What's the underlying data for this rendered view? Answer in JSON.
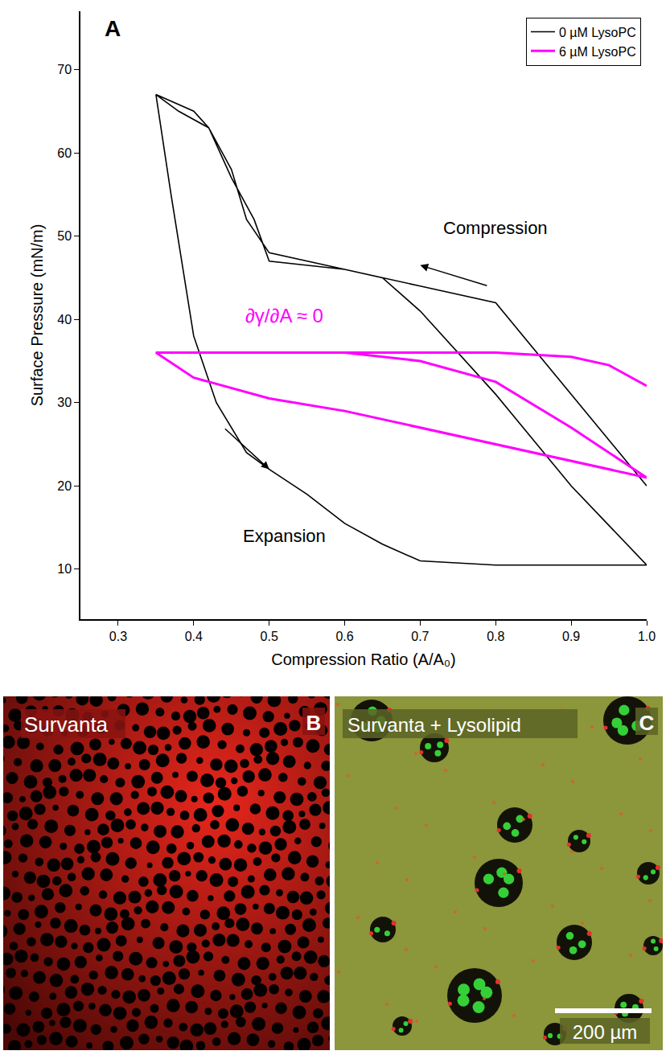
{
  "chart_data": {
    "type": "line",
    "panel_letter": "A",
    "x_label": "Compression Ratio (A/A₀)",
    "y_label": "Surface Pressure (mN/m)",
    "xlim": [
      0.25,
      1.0
    ],
    "ylim": [
      4,
      77
    ],
    "xticks": [
      0.3,
      0.4,
      0.5,
      0.6,
      0.7,
      0.8,
      0.9,
      {
        "value": 1.0,
        "label": "1.0"
      }
    ],
    "yticks": [
      10,
      20,
      30,
      40,
      50,
      60,
      70
    ],
    "grid": false,
    "legend": "upper right",
    "series": [
      {
        "name": "0 µM LysoPC",
        "color": "#000000",
        "x": [
          1.0,
          0.8,
          0.7,
          0.6,
          0.5,
          0.47,
          0.45,
          0.42,
          0.38,
          0.35,
          0.37,
          0.4,
          0.43,
          0.47,
          0.5,
          0.55,
          0.6,
          0.65,
          0.7,
          0.8,
          0.9,
          1.0,
          0.9,
          0.8,
          0.7,
          0.65,
          0.6,
          0.55,
          0.5,
          0.48,
          0.45,
          0.42,
          0.4,
          0.35
        ],
        "values": [
          20,
          42,
          44,
          46,
          48,
          52,
          58,
          63,
          65,
          67,
          55,
          38,
          30,
          24,
          22,
          19,
          15.5,
          13,
          11,
          10.5,
          10.5,
          10.5,
          20,
          31,
          41,
          45,
          46,
          46.5,
          47,
          52,
          57,
          63,
          65,
          67
        ]
      },
      {
        "name": "6 µM LysoPC",
        "color": "#ff00ff",
        "x": [
          1.0,
          0.95,
          0.9,
          0.8,
          0.7,
          0.6,
          0.5,
          0.4,
          0.35,
          0.4,
          0.5,
          0.6,
          0.7,
          0.8,
          0.9,
          1.0,
          0.9,
          0.8,
          0.7,
          0.6,
          0.5,
          0.35
        ],
        "values": [
          32,
          34.5,
          35.5,
          36,
          36,
          36,
          36,
          36,
          36,
          33,
          30.5,
          29,
          27,
          25,
          23,
          21,
          27,
          32.5,
          35,
          36,
          36,
          36
        ]
      }
    ],
    "annotations": [
      {
        "text": "Compression",
        "x": 0.8,
        "y": 51,
        "color": "#000000",
        "arrow": {
          "x": 0.7,
          "y": 46.5,
          "ax": 0.79,
          "ay": 44
        }
      },
      {
        "text": "Expansion",
        "x": 0.52,
        "y": 14,
        "color": "#000000",
        "arrow": {
          "x": 0.5,
          "y": 22,
          "ax": 0.44,
          "ay": 27
        }
      },
      {
        "text": "∂γ/∂A ≈ 0",
        "x": 0.52,
        "y": 40.5,
        "color": "#ff00ff"
      }
    ]
  },
  "panels": [
    {
      "letter": "B",
      "label": "Survanta"
    },
    {
      "letter": "C",
      "label": "Survanta + Lysolipid",
      "scale_bar": "200 µm"
    }
  ]
}
